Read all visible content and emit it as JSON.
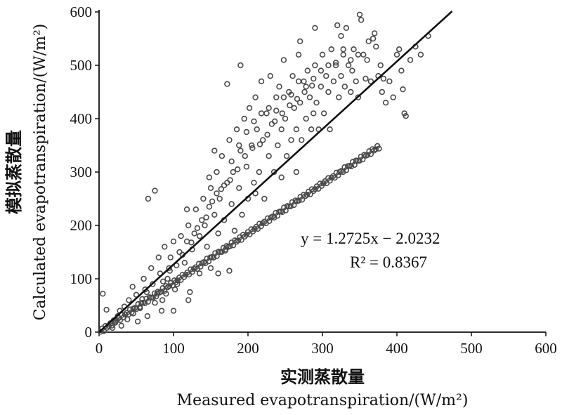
{
  "chart_data": {
    "type": "scatter",
    "title": "",
    "xlabel_cn": "实测蒸散量",
    "xlabel": "Measured evapotranspiration/(W/m²)",
    "ylabel_cn": "模拟蒸散量",
    "ylabel": "Calculated evapotranspiration/(W/m²)",
    "xlim": [
      0,
      600
    ],
    "ylim": [
      0,
      600
    ],
    "x_ticks": [
      "0",
      "100",
      "200",
      "300",
      "400",
      "500",
      "600"
    ],
    "y_ticks": [
      "0",
      "100",
      "200",
      "300",
      "400",
      "500",
      "600"
    ],
    "grid": false,
    "annotation": {
      "equation": "y = 1.2725x − 2.0232",
      "r2": "R² = 0.8367"
    },
    "regression": {
      "slope": 1.2725,
      "intercept": -2.0232,
      "x_range": [
        0,
        474
      ]
    },
    "points_band": [
      [
        5,
        72
      ],
      [
        10,
        42
      ],
      [
        18,
        8
      ],
      [
        25,
        30
      ],
      [
        30,
        12
      ],
      [
        40,
        60
      ],
      [
        45,
        85
      ],
      [
        55,
        45
      ],
      [
        60,
        100
      ],
      [
        65,
        30
      ],
      [
        70,
        120
      ],
      [
        75,
        55
      ],
      [
        80,
        140
      ],
      [
        85,
        60
      ],
      [
        88,
        160
      ],
      [
        92,
        100
      ],
      [
        95,
        115
      ],
      [
        100,
        40
      ],
      [
        100,
        170
      ],
      [
        105,
        90
      ],
      [
        110,
        180
      ],
      [
        115,
        130
      ],
      [
        120,
        200
      ],
      [
        122,
        75
      ],
      [
        125,
        155
      ],
      [
        130,
        230
      ],
      [
        135,
        110
      ],
      [
        135,
        180
      ],
      [
        140,
        250
      ],
      [
        142,
        200
      ],
      [
        145,
        160
      ],
      [
        150,
        270
      ],
      [
        150,
        120
      ],
      [
        155,
        220
      ],
      [
        158,
        300
      ],
      [
        160,
        185
      ],
      [
        162,
        250
      ],
      [
        165,
        330
      ],
      [
        168,
        210
      ],
      [
        170,
        155
      ],
      [
        172,
        280
      ],
      [
        175,
        360
      ],
      [
        178,
        240
      ],
      [
        180,
        300
      ],
      [
        182,
        190
      ],
      [
        185,
        380
      ],
      [
        188,
        270
      ],
      [
        190,
        500
      ],
      [
        190,
        340
      ],
      [
        192,
        220
      ],
      [
        195,
        400
      ],
      [
        198,
        310
      ],
      [
        200,
        250
      ],
      [
        202,
        420
      ],
      [
        205,
        350
      ],
      [
        208,
        280
      ],
      [
        210,
        440
      ],
      [
        212,
        380
      ],
      [
        215,
        300
      ],
      [
        218,
        470
      ],
      [
        220,
        360
      ],
      [
        222,
        250
      ],
      [
        225,
        410
      ],
      [
        228,
        330
      ],
      [
        230,
        480
      ],
      [
        232,
        390
      ],
      [
        235,
        300
      ],
      [
        238,
        440
      ],
      [
        240,
        350
      ],
      [
        242,
        460
      ],
      [
        245,
        380
      ],
      [
        248,
        510
      ],
      [
        250,
        400
      ],
      [
        252,
        330
      ],
      [
        255,
        450
      ],
      [
        258,
        360
      ],
      [
        260,
        480
      ],
      [
        262,
        420
      ],
      [
        265,
        380
      ],
      [
        268,
        520
      ],
      [
        270,
        430
      ],
      [
        272,
        360
      ],
      [
        275,
        470
      ],
      [
        278,
        400
      ],
      [
        280,
        490
      ],
      [
        283,
        440
      ],
      [
        285,
        380
      ],
      [
        288,
        410
      ],
      [
        290,
        500
      ],
      [
        292,
        430
      ],
      [
        295,
        380
      ],
      [
        298,
        460
      ],
      [
        300,
        520
      ],
      [
        302,
        410
      ],
      [
        305,
        480
      ],
      [
        308,
        450
      ],
      [
        310,
        380
      ],
      [
        312,
        530
      ],
      [
        315,
        470
      ],
      [
        318,
        500
      ],
      [
        320,
        575
      ],
      [
        322,
        440
      ],
      [
        325,
        480
      ],
      [
        328,
        520
      ],
      [
        330,
        460
      ],
      [
        332,
        570
      ],
      [
        335,
        500
      ],
      [
        338,
        450
      ],
      [
        340,
        490
      ],
      [
        342,
        530
      ],
      [
        345,
        470
      ],
      [
        348,
        440
      ],
      [
        350,
        595
      ],
      [
        352,
        585
      ],
      [
        355,
        520
      ],
      [
        358,
        475
      ],
      [
        360,
        510
      ],
      [
        362,
        545
      ],
      [
        365,
        470
      ],
      [
        368,
        550
      ],
      [
        370,
        560
      ],
      [
        372,
        535
      ],
      [
        375,
        480
      ],
      [
        378,
        500
      ],
      [
        380,
        450
      ],
      [
        382,
        475
      ],
      [
        385,
        430
      ],
      [
        390,
        470
      ],
      [
        395,
        440
      ],
      [
        400,
        520
      ],
      [
        403,
        530
      ],
      [
        406,
        490
      ],
      [
        408,
        455
      ],
      [
        410,
        410
      ],
      [
        412,
        405
      ],
      [
        418,
        510
      ],
      [
        425,
        535
      ],
      [
        432,
        520
      ],
      [
        442,
        555
      ],
      [
        50,
        70
      ],
      [
        62,
        80
      ],
      [
        72,
        90
      ],
      [
        82,
        110
      ],
      [
        96,
        140
      ],
      [
        108,
        150
      ],
      [
        118,
        170
      ],
      [
        128,
        185
      ],
      [
        138,
        210
      ],
      [
        148,
        235
      ],
      [
        158,
        260
      ],
      [
        168,
        275
      ],
      [
        178,
        320
      ],
      [
        188,
        350
      ],
      [
        198,
        375
      ],
      [
        208,
        395
      ],
      [
        218,
        410
      ],
      [
        228,
        420
      ],
      [
        238,
        415
      ],
      [
        248,
        440
      ],
      [
        258,
        445
      ],
      [
        268,
        470
      ],
      [
        278,
        460
      ],
      [
        288,
        475
      ],
      [
        298,
        490
      ],
      [
        308,
        500
      ],
      [
        318,
        505
      ],
      [
        328,
        530
      ],
      [
        338,
        510
      ],
      [
        348,
        520
      ],
      [
        66,
        250
      ],
      [
        75,
        265
      ],
      [
        118,
        230
      ],
      [
        155,
        340
      ],
      [
        172,
        465
      ],
      [
        148,
        290
      ],
      [
        270,
        545
      ],
      [
        290,
        570
      ],
      [
        325,
        555
      ],
      [
        210,
        260
      ],
      [
        245,
        290
      ],
      [
        265,
        300
      ],
      [
        160,
        110
      ],
      [
        175,
        115
      ],
      [
        120,
        60
      ],
      [
        102,
        80
      ],
      [
        84,
        40
      ],
      [
        90,
        72
      ],
      [
        22,
        20
      ],
      [
        28,
        40
      ],
      [
        34,
        48
      ],
      [
        38,
        24
      ],
      [
        46,
        35
      ],
      [
        52,
        20
      ],
      [
        58,
        62
      ],
      [
        64,
        75
      ],
      [
        78,
        72
      ],
      [
        86,
        95
      ],
      [
        94,
        120
      ],
      [
        104,
        125
      ],
      [
        112,
        145
      ],
      [
        124,
        168
      ],
      [
        132,
        195
      ],
      [
        144,
        215
      ],
      [
        152,
        245
      ],
      [
        164,
        268
      ],
      [
        176,
        285
      ],
      [
        186,
        305
      ],
      [
        196,
        330
      ],
      [
        206,
        345
      ],
      [
        216,
        352
      ],
      [
        226,
        370
      ],
      [
        236,
        395
      ],
      [
        246,
        410
      ],
      [
        256,
        425
      ],
      [
        266,
        437
      ],
      [
        276,
        450
      ],
      [
        286,
        462
      ]
    ]
  }
}
